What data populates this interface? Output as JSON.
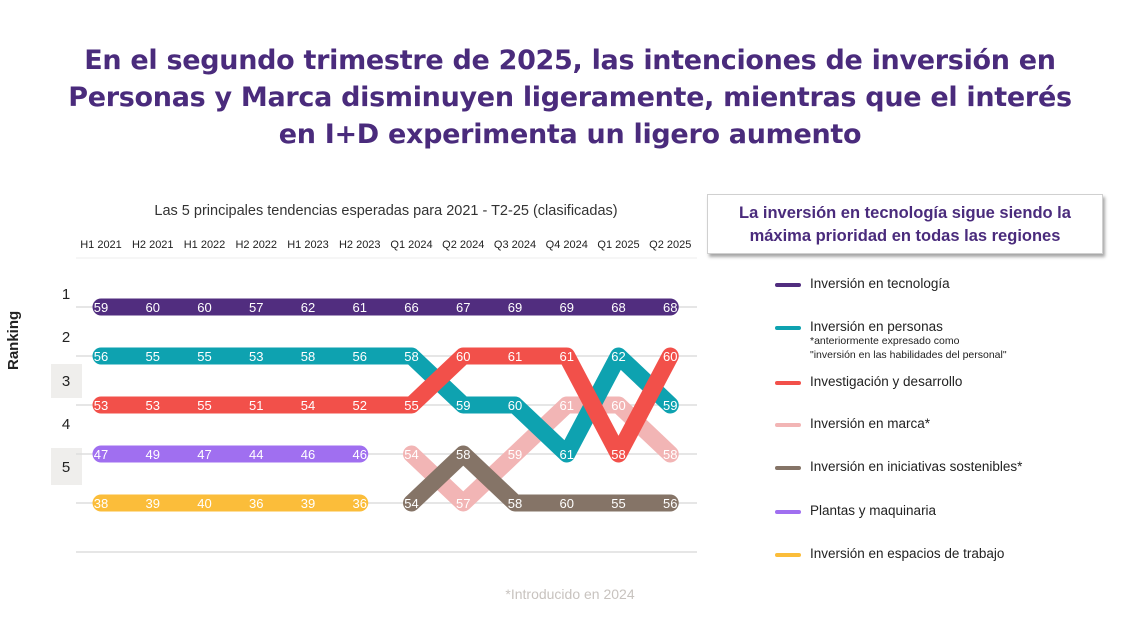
{
  "title": "En el segundo trimestre de 2025, las intenciones de inversión en Personas y Marca disminuyen ligeramente, mientras que el interés en I+D experimenta un ligero aumento",
  "title_lines": [
    "En el segundo trimestre de 2025, las intenciones de inversión en",
    "Personas y Marca disminuyen ligeramente, mientras que el interés",
    "en I+D experimenta un ligero aumento"
  ],
  "callout_lines": [
    "La inversión en tecnología sigue siendo la",
    "máxima prioridad en todas las regiones"
  ],
  "footnote": "*Introducido en 2024",
  "colors": {
    "title": "#4a2b7c",
    "tecnologia": "#512d7f",
    "personas": "#0ea2b0",
    "id": "#f2504a",
    "marca": "#f2b5b5",
    "sostenibles": "#857467",
    "plantas": "#a06ff0",
    "espacios": "#fbbd3a"
  },
  "chart_data": {
    "type": "line",
    "subtype": "bump-chart",
    "title": "Las 5 principales tendencias esperadas para 2021 - T2-25 (clasificadas)",
    "ylabel": "Ranking",
    "xlabel": "",
    "y_ticks": [
      "1",
      "2",
      "3",
      "4",
      "5"
    ],
    "y_range": [
      1,
      5
    ],
    "y_inverted": true,
    "categories": [
      "H1 2021",
      "H2 2021",
      "H1 2022",
      "H2 2022",
      "H1 2023",
      "H2 2023",
      "Q1 2024",
      "Q2 2024",
      "Q3 2024",
      "Q4 2024",
      "Q1 2025",
      "Q2 2025"
    ],
    "grid": true,
    "legend_position": "right",
    "series": [
      {
        "name": "Inversión en tecnología",
        "color": "#512d7f",
        "rank": [
          1,
          1,
          1,
          1,
          1,
          1,
          1,
          1,
          1,
          1,
          1,
          1
        ],
        "values": [
          59,
          60,
          60,
          57,
          62,
          61,
          66,
          67,
          69,
          69,
          68,
          68
        ]
      },
      {
        "name": "Inversión en personas",
        "note": [
          "*anteriormente expresado como",
          "\"inversión en las habilidades del personal\""
        ],
        "color": "#0ea2b0",
        "rank": [
          2,
          2,
          2,
          2,
          2,
          2,
          2,
          3,
          3,
          4,
          2,
          3
        ],
        "values": [
          56,
          55,
          55,
          53,
          58,
          56,
          58,
          59,
          60,
          61,
          62,
          59
        ]
      },
      {
        "name": "Investigación y desarrollo",
        "color": "#f2504a",
        "rank": [
          3,
          3,
          3,
          3,
          3,
          3,
          3,
          2,
          2,
          2,
          4,
          2
        ],
        "values": [
          53,
          53,
          55,
          51,
          54,
          52,
          55,
          60,
          61,
          61,
          58,
          60
        ]
      },
      {
        "name": "Inversión en marca*",
        "color": "#f2b5b5",
        "rank": [
          null,
          null,
          null,
          null,
          null,
          null,
          4,
          5,
          4,
          3,
          3,
          4
        ],
        "values": [
          null,
          null,
          null,
          null,
          null,
          null,
          54,
          57,
          59,
          61,
          60,
          58
        ]
      },
      {
        "name": "Inversión en iniciativas sostenibles*",
        "color": "#857467",
        "rank": [
          null,
          null,
          null,
          null,
          null,
          null,
          5,
          4,
          5,
          5,
          5,
          5
        ],
        "values": [
          null,
          null,
          null,
          null,
          null,
          null,
          54,
          58,
          58,
          60,
          55,
          56
        ]
      },
      {
        "name": "Plantas y maquinaria",
        "color": "#a06ff0",
        "rank": [
          4,
          4,
          4,
          4,
          4,
          4,
          null,
          null,
          null,
          null,
          null,
          null
        ],
        "values": [
          47,
          49,
          47,
          44,
          46,
          46,
          null,
          null,
          null,
          null,
          null,
          null
        ]
      },
      {
        "name": "Inversión en espacios de trabajo",
        "color": "#fbbd3a",
        "rank": [
          5,
          5,
          5,
          5,
          5,
          5,
          null,
          null,
          null,
          null,
          null,
          null
        ],
        "values": [
          38,
          39,
          40,
          36,
          39,
          36,
          null,
          null,
          null,
          null,
          null,
          null
        ]
      }
    ]
  }
}
